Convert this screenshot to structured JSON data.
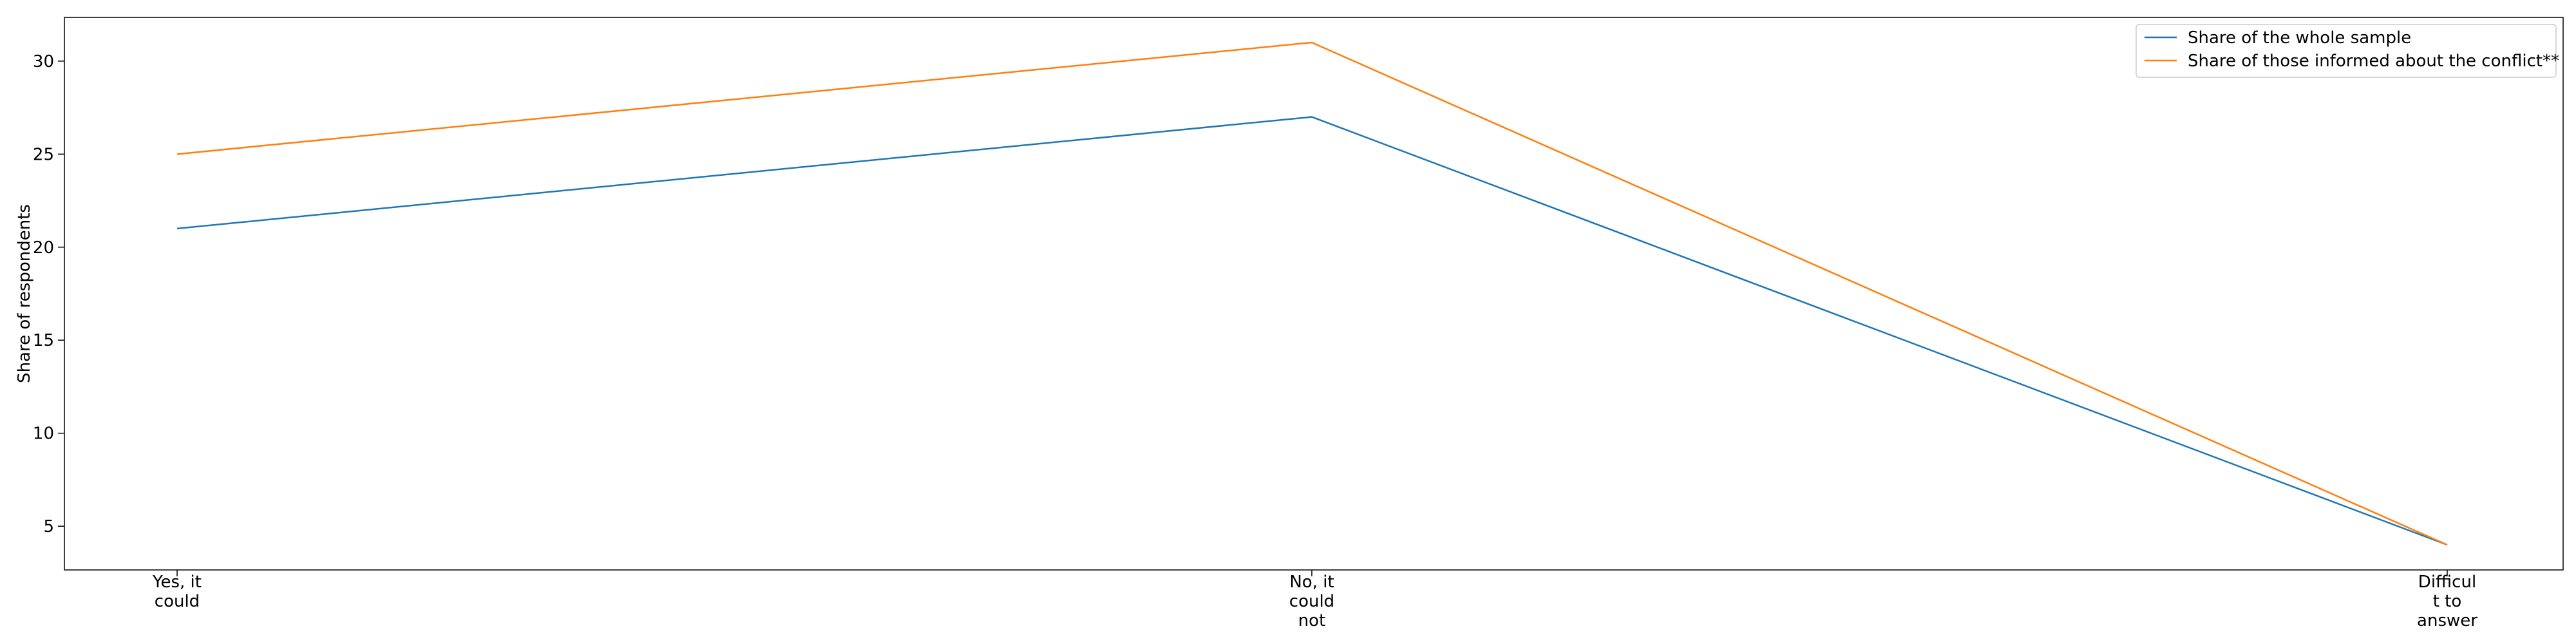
{
  "chart_data": {
    "type": "line",
    "title": "",
    "xlabel": "",
    "ylabel": "Share of respondents",
    "categories": [
      [
        "Yes, it",
        "could"
      ],
      [
        "No, it",
        "could",
        "not"
      ],
      [
        "Difficul",
        "t to",
        "answer"
      ]
    ],
    "series": [
      {
        "name": "Share of the whole sample",
        "values": [
          21,
          27,
          4
        ],
        "color": "#1f77b4"
      },
      {
        "name": "Share of those informed about the conflict**",
        "values": [
          25,
          31,
          4
        ],
        "color": "#ff7f0e"
      }
    ],
    "ylim": [
      2.65,
      32.35
    ],
    "yticks": [
      5,
      10,
      15,
      20,
      25,
      30
    ],
    "grid": false,
    "legend": "top-right"
  }
}
